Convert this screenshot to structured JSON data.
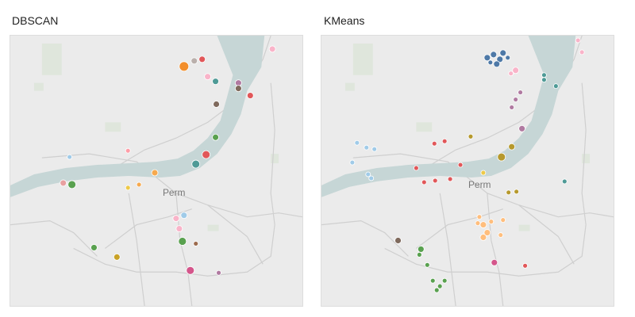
{
  "panels": [
    {
      "title": "DBSCAN",
      "city_label": "Perm"
    },
    {
      "title": "KMeans",
      "city_label": "Perm"
    }
  ]
}
